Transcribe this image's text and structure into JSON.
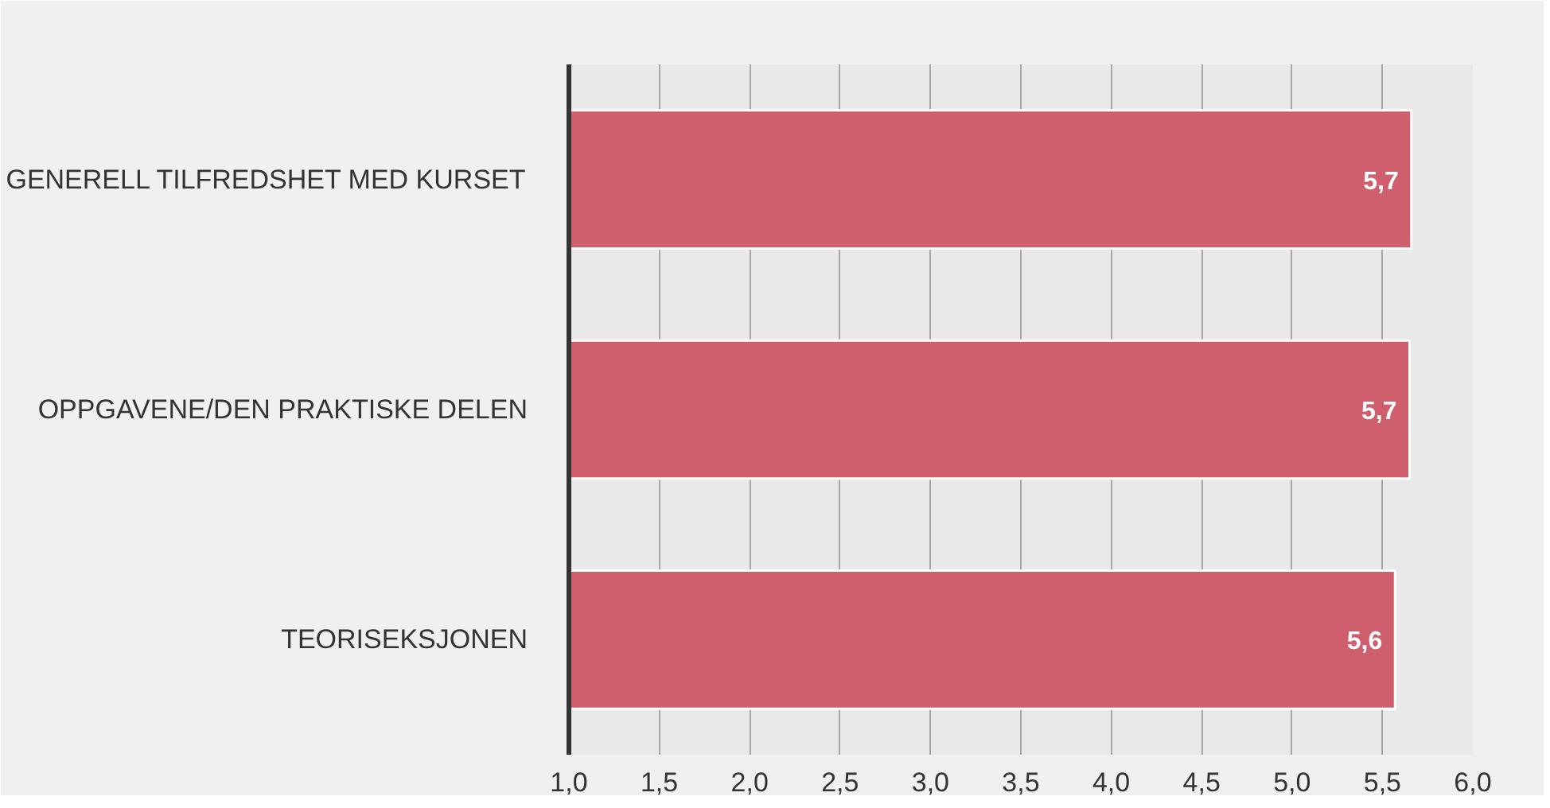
{
  "chart_data": {
    "type": "bar",
    "orientation": "horizontal",
    "categories": [
      "GENERELL TILFREDSHET MED KURSET",
      "OPPGAVENE/DEN PRAKTISKE DELEN",
      "TEORISEKSJONEN"
    ],
    "values": [
      5.66,
      5.65,
      5.57
    ],
    "value_labels": [
      "5,7",
      "5,7",
      "5,6"
    ],
    "color": "#d05f6e",
    "xlim": [
      1.0,
      6.0
    ],
    "xticks": [
      {
        "value": 1.0,
        "label": "1,0"
      },
      {
        "value": 1.5,
        "label": "1,5"
      },
      {
        "value": 2.0,
        "label": "2,0"
      },
      {
        "value": 2.5,
        "label": "2,5"
      },
      {
        "value": 3.0,
        "label": "3,0"
      },
      {
        "value": 3.5,
        "label": "3,5"
      },
      {
        "value": 4.0,
        "label": "4,0"
      },
      {
        "value": 4.5,
        "label": "4,5"
      },
      {
        "value": 5.0,
        "label": "5,0"
      },
      {
        "value": 5.5,
        "label": "5,5"
      },
      {
        "value": 6.0,
        "label": "6,0"
      }
    ],
    "grid": "x"
  }
}
